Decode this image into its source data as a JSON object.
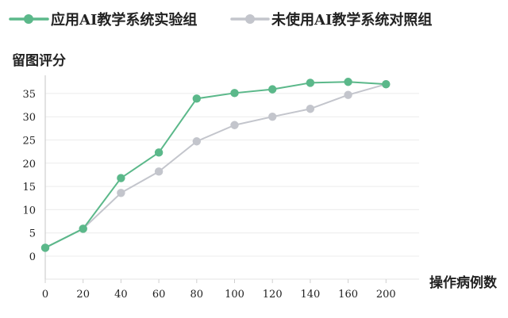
{
  "chart_data": {
    "type": "line",
    "title": "",
    "xlabel": "操作病例数",
    "ylabel": "留图评分",
    "x": [
      0,
      20,
      40,
      60,
      80,
      100,
      120,
      140,
      160,
      200
    ],
    "xticks": [
      "0",
      "20",
      "40",
      "60",
      "80",
      "100",
      "120",
      "140",
      "160",
      "200"
    ],
    "yticks": [
      "0",
      "5",
      "10",
      "15",
      "20",
      "25",
      "30",
      "35"
    ],
    "ylim": [
      -5,
      38
    ],
    "grid": true,
    "legend_position": "top-left",
    "series": [
      {
        "name": "应用AI教学系统实验组",
        "color": "#5bb88a",
        "values": [
          1.8,
          5.9,
          16.8,
          22.3,
          33.9,
          35.1,
          35.9,
          37.3,
          37.5,
          37.0
        ]
      },
      {
        "name": "未使用AI教学系统对照组",
        "color": "#c3c5cc",
        "values": [
          1.8,
          5.9,
          13.6,
          18.2,
          24.7,
          28.2,
          30.0,
          31.7,
          34.7,
          37.0
        ]
      }
    ]
  }
}
